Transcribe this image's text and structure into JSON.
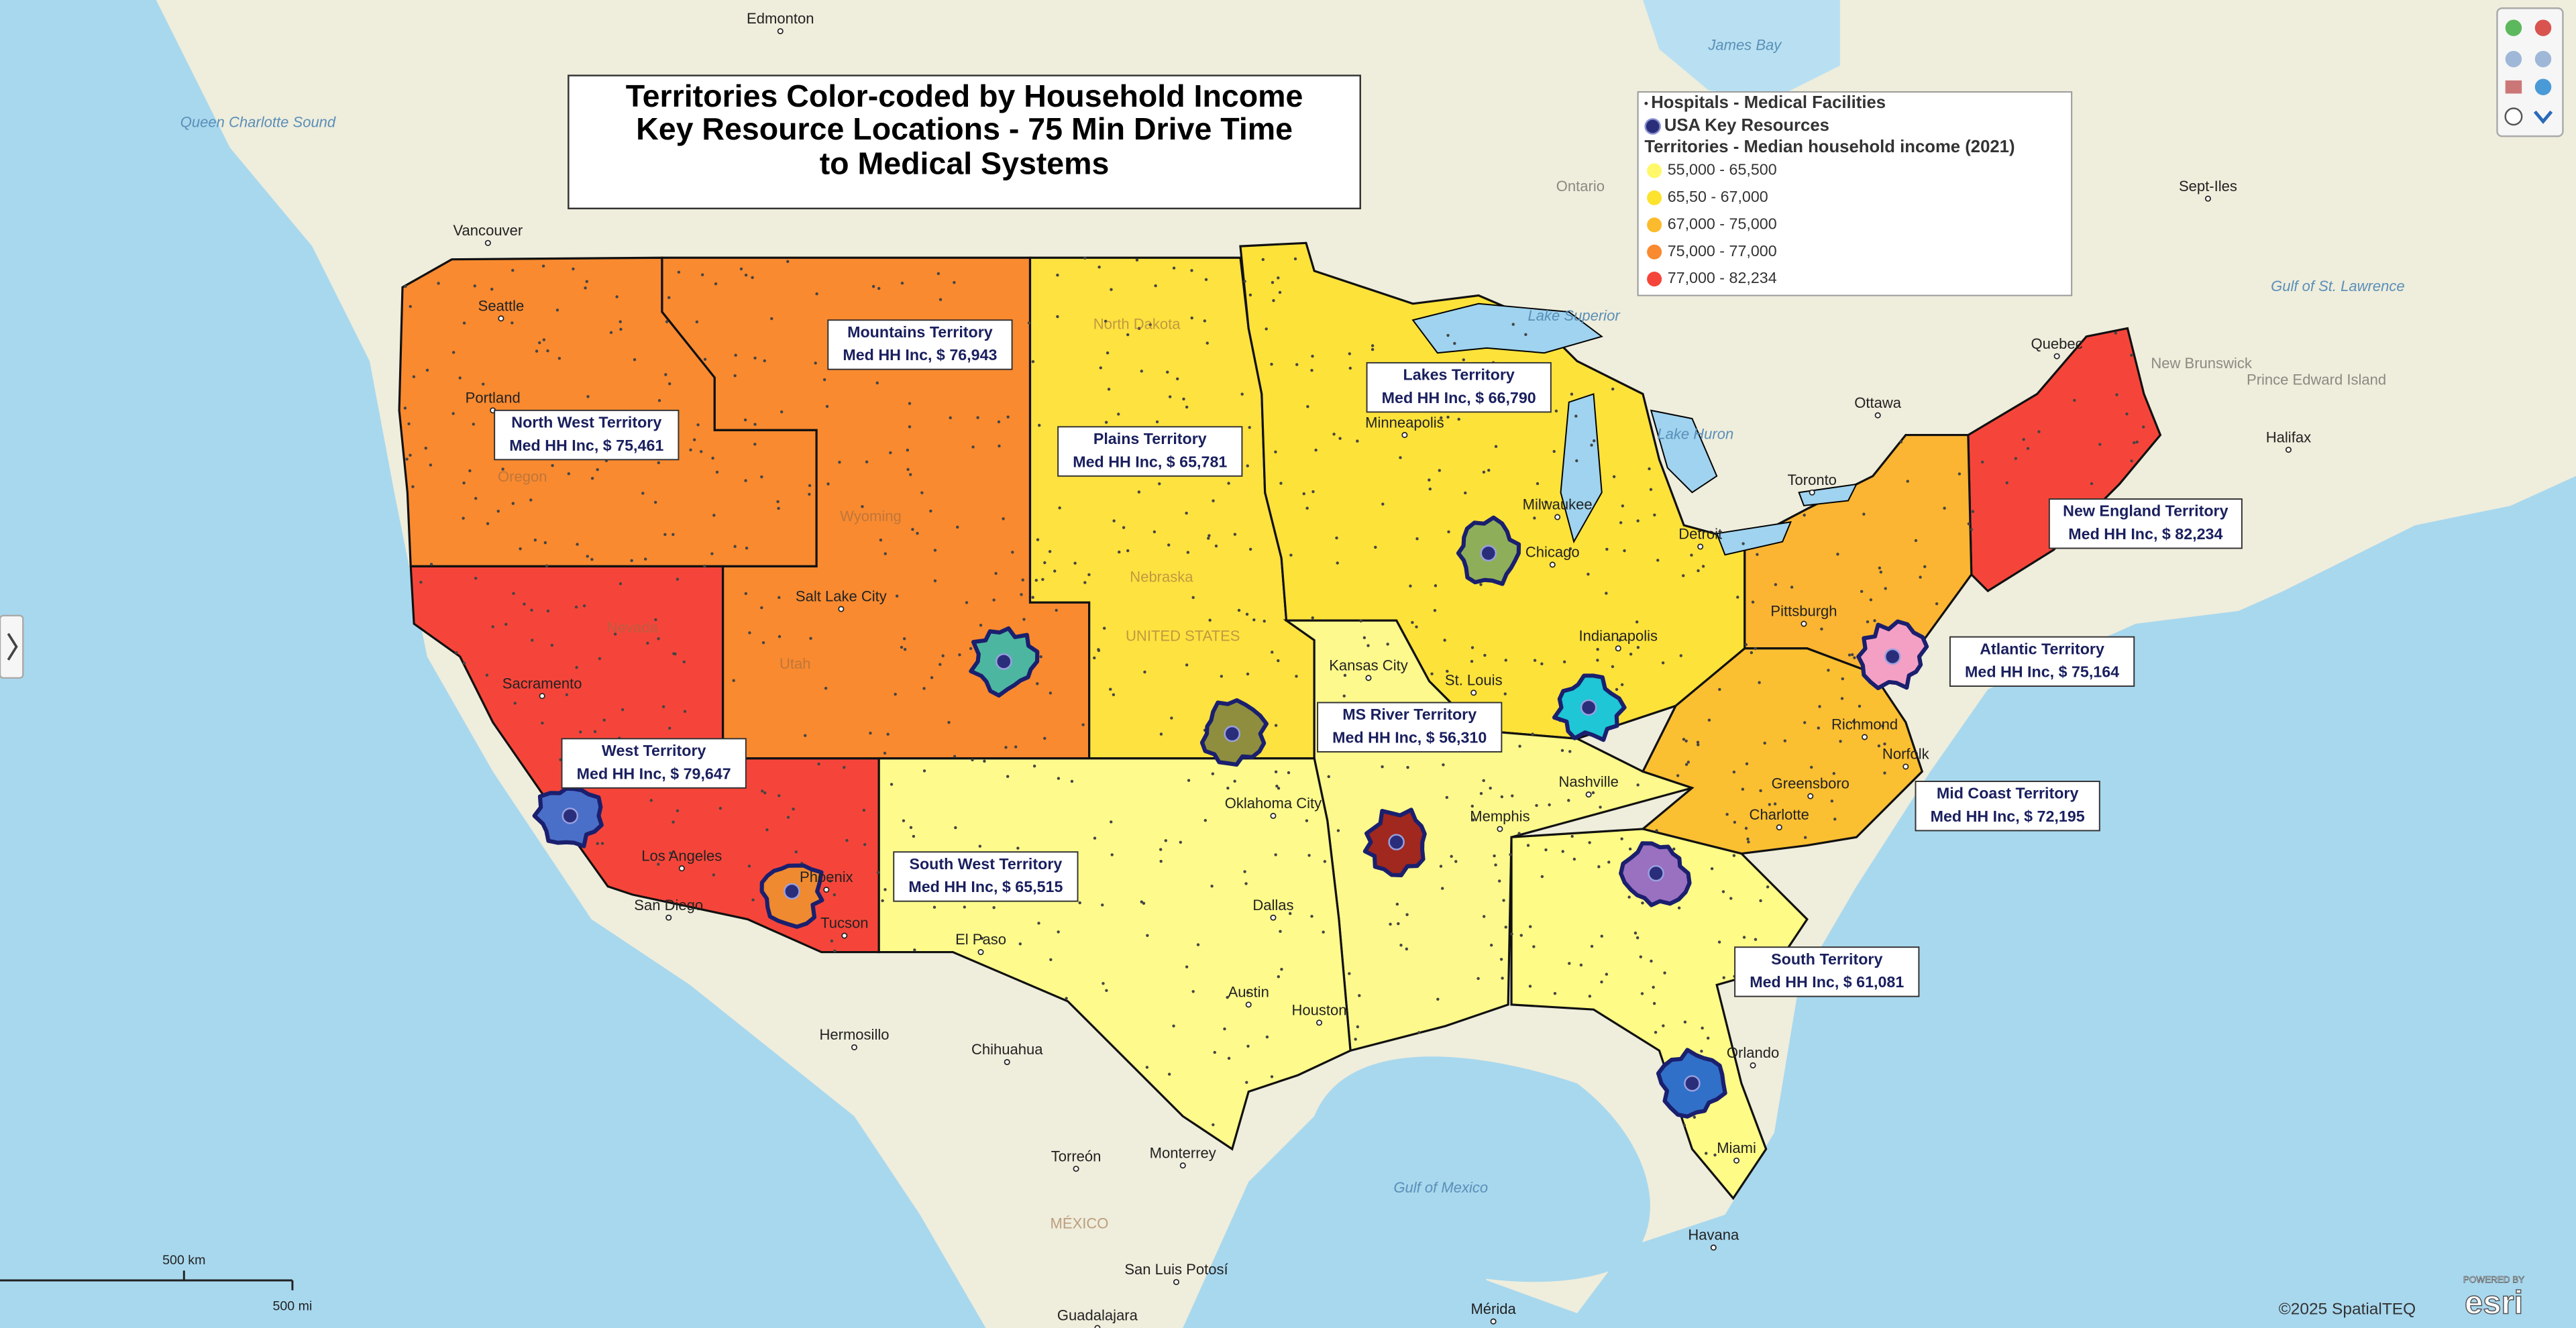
{
  "title": {
    "lines": [
      "Territories Color-coded by Household Income",
      "Key Resource Locations - 75 Min Drive Time",
      "to Medical Systems"
    ]
  },
  "legend": {
    "layers": [
      "Hospitals - Medical Facilities",
      "USA Key Resources"
    ],
    "heading": "Territories - Median household income (2021)",
    "items": [
      {
        "label": "55,000 - 65,500",
        "color": "#fff86a"
      },
      {
        "label": "65,50 - 67,000",
        "color": "#fde22e"
      },
      {
        "label": "67,000 - 75,000",
        "color": "#fbbb2c"
      },
      {
        "label": "75,000 - 77,000",
        "color": "#f98a30"
      },
      {
        "label": "77,000 - 82,234",
        "color": "#f5453a"
      }
    ]
  },
  "territories": [
    {
      "name": "North West Territory",
      "label": "Med HH Inc, $ 75,461",
      "color": "#f98a30"
    },
    {
      "name": "Mountains Territory",
      "label": "Med HH Inc, $ 76,943",
      "color": "#f98a30"
    },
    {
      "name": "Plains Territory",
      "label": "Med HH Inc, $ 65,781",
      "color": "#fde240"
    },
    {
      "name": "Lakes Territory",
      "label": "Med HH Inc, $ 66,790",
      "color": "#fde23a"
    },
    {
      "name": "New England Territory",
      "label": "Med HH Inc, $ 82,234",
      "color": "#f5453a"
    },
    {
      "name": "Atlantic Territory",
      "label": "Med HH Inc, $ 75,164",
      "color": "#fbb532"
    },
    {
      "name": "MS River Territory",
      "label": "Med HH Inc, $ 56,310",
      "color": "#fdf98c"
    },
    {
      "name": "West Territory",
      "label": "Med HH Inc, $ 79,647",
      "color": "#f5453a"
    },
    {
      "name": "Mid Coast Territory",
      "label": "Med HH Inc, $ 72,195",
      "color": "#fbbf32"
    },
    {
      "name": "South West Territory",
      "label": "Med HH Inc, $ 65,515",
      "color": "#fefb8c"
    },
    {
      "name": "South Territory",
      "label": "Med HH Inc, $ 61,081",
      "color": "#fefb86"
    }
  ],
  "places": [
    "Edmonton",
    "James Bay",
    "Queen Charlotte Sound",
    "Vancouver",
    "Seattle",
    "Portland",
    "Ontario",
    "Lake Superior",
    "Lake Huron",
    "Ottawa",
    "Toronto",
    "Quebec",
    "New Brunswick",
    "Prince Edward Island",
    "Halifax",
    "Gulf of St. Lawrence",
    "Sept-Iles",
    "Minneapolis",
    "Milwaukee",
    "Chicago",
    "Detroit",
    "Pittsburgh",
    "Salt Lake City",
    "Nevada",
    "Sacramento",
    "Los Angeles",
    "San Diego",
    "Phoenix",
    "Tucson",
    "El Paso",
    "Kansas City",
    "St. Louis",
    "Indianapolis",
    "Nashville",
    "Memphis",
    "Richmond",
    "Norfolk",
    "Charlotte",
    "Greensboro",
    "Dallas",
    "Austin",
    "Houston",
    "Oklahoma City",
    "Orlando",
    "Miami",
    "Havana",
    "Hermosillo",
    "Chihuahua",
    "Torreón",
    "Monterrey",
    "MÉXICO",
    "Gulf of Mexico",
    "San Luis Potosí",
    "Guadalajara",
    "Mérida",
    "Wyoming",
    "Nebraska",
    "Utah",
    "Oregon",
    "North Dakota",
    "UNITED STATES"
  ],
  "scale": {
    "km": "500 km",
    "mi": "500 mi"
  },
  "credits": {
    "copyright": "©2025 SpatialTEQ",
    "powered": "POWERED BY",
    "esri": "esri"
  }
}
